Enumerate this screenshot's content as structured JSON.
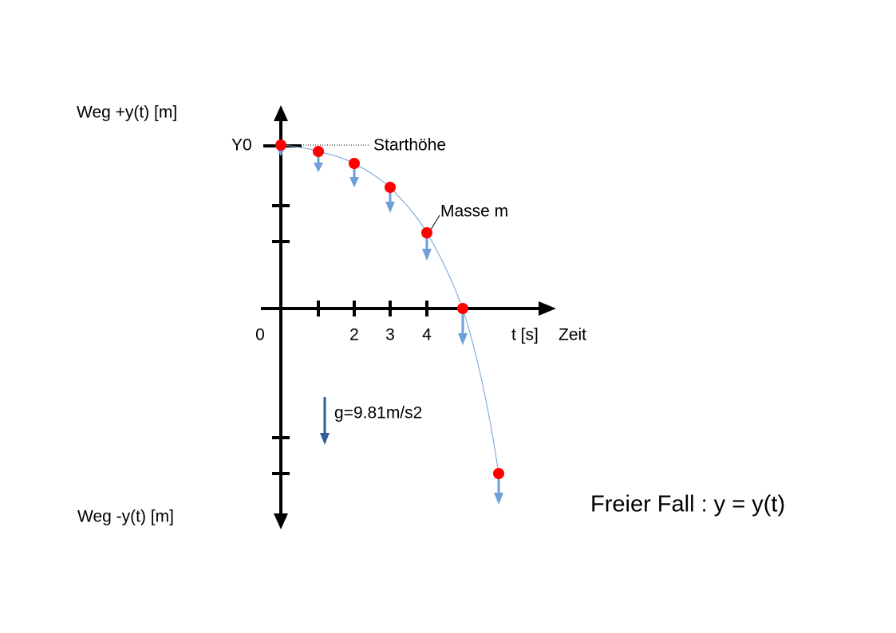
{
  "title": "Freier Fall : y = y(t)",
  "axes": {
    "y_positive_label": "Weg +y(t) [m]",
    "y_negative_label": "Weg -y(t) [m]",
    "y0_label": "Y0",
    "x_tick_labels": [
      "0",
      "2",
      "3",
      "4"
    ],
    "x_unit_label": "t [s]",
    "x_name": "Zeit"
  },
  "annotations": {
    "start_height": "Starthöhe",
    "mass": "Masse m",
    "gravity": "g=9.81m/s2"
  }
}
